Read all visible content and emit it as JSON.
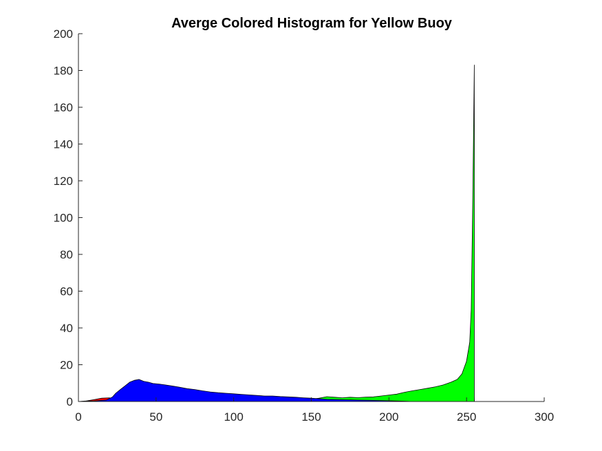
{
  "chart_data": {
    "type": "area",
    "title": "Averge Colored Histogram for Yellow Buoy",
    "xlabel": "",
    "ylabel": "",
    "xlim": [
      0,
      300
    ],
    "ylim": [
      0,
      200
    ],
    "xticks": [
      0,
      50,
      100,
      150,
      200,
      250,
      300
    ],
    "yticks": [
      0,
      20,
      40,
      60,
      80,
      100,
      120,
      140,
      160,
      180,
      200
    ],
    "grid": false,
    "legend": "none",
    "series": [
      {
        "color": "#ff0000",
        "points": [
          [
            0,
            0
          ],
          [
            5,
            0.3
          ],
          [
            10,
            1.0
          ],
          [
            15,
            1.8
          ],
          [
            20,
            2.0
          ],
          [
            22,
            1.2
          ],
          [
            25,
            0.6
          ],
          [
            30,
            0.3
          ],
          [
            40,
            0
          ],
          [
            150,
            0
          ],
          [
            200,
            0
          ],
          [
            230,
            0
          ],
          [
            240,
            1
          ],
          [
            245,
            4
          ],
          [
            248,
            10
          ],
          [
            250,
            22
          ],
          [
            252,
            32
          ],
          [
            253,
            31
          ],
          [
            254,
            20
          ],
          [
            255,
            0
          ]
        ]
      },
      {
        "color": "#00ff00",
        "points": [
          [
            0,
            0
          ],
          [
            100,
            0.2
          ],
          [
            130,
            0.8
          ],
          [
            150,
            1.2
          ],
          [
            155,
            1.8
          ],
          [
            160,
            2.6
          ],
          [
            165,
            2.3
          ],
          [
            170,
            2.0
          ],
          [
            175,
            2.3
          ],
          [
            180,
            2.1
          ],
          [
            185,
            2.4
          ],
          [
            190,
            2.5
          ],
          [
            195,
            3.0
          ],
          [
            200,
            3.5
          ],
          [
            205,
            4.0
          ],
          [
            210,
            5.0
          ],
          [
            215,
            5.8
          ],
          [
            220,
            6.5
          ],
          [
            225,
            7.2
          ],
          [
            230,
            8.0
          ],
          [
            235,
            9.0
          ],
          [
            240,
            10.5
          ],
          [
            244,
            12
          ],
          [
            247,
            15
          ],
          [
            250,
            22
          ],
          [
            252,
            32
          ],
          [
            253,
            50
          ],
          [
            254,
            110
          ],
          [
            255,
            183
          ],
          [
            255,
            0
          ]
        ]
      },
      {
        "color": "#0000ff",
        "points": [
          [
            0,
            0
          ],
          [
            10,
            0.3
          ],
          [
            18,
            0.8
          ],
          [
            22,
            2.5
          ],
          [
            24,
            4.5
          ],
          [
            27,
            6.5
          ],
          [
            30,
            8.5
          ],
          [
            33,
            10.5
          ],
          [
            36,
            11.5
          ],
          [
            39,
            12.0
          ],
          [
            42,
            11.0
          ],
          [
            45,
            10.5
          ],
          [
            48,
            9.8
          ],
          [
            52,
            9.5
          ],
          [
            56,
            9.0
          ],
          [
            60,
            8.5
          ],
          [
            65,
            7.8
          ],
          [
            70,
            7.0
          ],
          [
            75,
            6.5
          ],
          [
            80,
            5.8
          ],
          [
            85,
            5.2
          ],
          [
            90,
            4.8
          ],
          [
            95,
            4.5
          ],
          [
            100,
            4.2
          ],
          [
            105,
            3.9
          ],
          [
            110,
            3.6
          ],
          [
            115,
            3.3
          ],
          [
            120,
            3.0
          ],
          [
            125,
            3.0
          ],
          [
            130,
            2.7
          ],
          [
            135,
            2.5
          ],
          [
            140,
            2.3
          ],
          [
            145,
            2.0
          ],
          [
            150,
            1.8
          ],
          [
            155,
            1.5
          ],
          [
            160,
            1.2
          ],
          [
            170,
            1.0
          ],
          [
            180,
            0.8
          ],
          [
            190,
            0.6
          ],
          [
            200,
            0.4
          ],
          [
            210,
            0.2
          ],
          [
            215,
            0
          ]
        ]
      }
    ]
  }
}
